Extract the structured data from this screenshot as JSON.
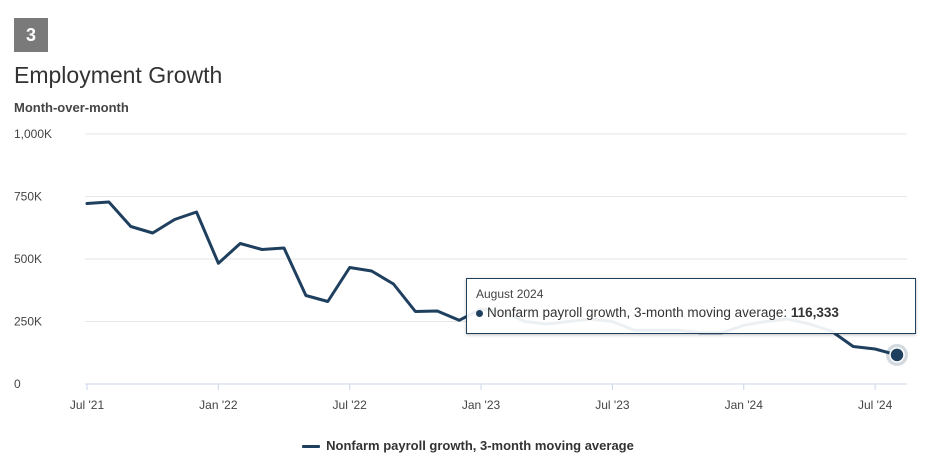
{
  "badge": "3",
  "header": {
    "title": "Employment Growth",
    "subtitle": "Month-over-month"
  },
  "colors": {
    "series": "#1f3f5e",
    "grid": "#e6e6e6",
    "axis": "#ccd6eb"
  },
  "tooltip": {
    "date": "August 2024",
    "label": "Nonfarm payroll growth, 3-month moving average: ",
    "value": "116,333"
  },
  "legend": {
    "label": "Nonfarm payroll growth, 3-month moving average"
  },
  "chart_data": {
    "type": "line",
    "title": "Employment Growth",
    "subtitle": "Month-over-month",
    "ylim": [
      0,
      1000000
    ],
    "y_ticks": [
      {
        "value": 0,
        "label": "0"
      },
      {
        "value": 250000,
        "label": "250K"
      },
      {
        "value": 500000,
        "label": "500K"
      },
      {
        "value": 750000,
        "label": "750K"
      },
      {
        "value": 1000000,
        "label": "1,000K"
      }
    ],
    "x_ticks": [
      {
        "date": "2021-07",
        "label": "Jul '21"
      },
      {
        "date": "2022-01",
        "label": "Jan '22"
      },
      {
        "date": "2022-07",
        "label": "Jul '22"
      },
      {
        "date": "2023-01",
        "label": "Jan '23"
      },
      {
        "date": "2023-07",
        "label": "Jul '23"
      },
      {
        "date": "2024-01",
        "label": "Jan '24"
      },
      {
        "date": "2024-07",
        "label": "Jul '24"
      }
    ],
    "x_range": [
      "2021-07",
      "2024-08"
    ],
    "grid": true,
    "legend_position": "bottom",
    "highlighted_point": {
      "x": "2024-08",
      "y": 116333
    },
    "series": [
      {
        "name": "Nonfarm payroll growth, 3-month moving average",
        "x": [
          "2021-07",
          "2021-08",
          "2021-09",
          "2021-10",
          "2021-11",
          "2021-12",
          "2022-01",
          "2022-02",
          "2022-03",
          "2022-04",
          "2022-05",
          "2022-06",
          "2022-07",
          "2022-08",
          "2022-09",
          "2022-10",
          "2022-11",
          "2022-12",
          "2023-01",
          "2023-02",
          "2023-03",
          "2023-04",
          "2023-05",
          "2023-06",
          "2023-07",
          "2023-08",
          "2023-09",
          "2023-10",
          "2023-11",
          "2023-12",
          "2024-01",
          "2024-02",
          "2024-03",
          "2024-04",
          "2024-05",
          "2024-06",
          "2024-07",
          "2024-08"
        ],
        "values": [
          722000,
          728000,
          630000,
          604000,
          658000,
          688000,
          483000,
          562000,
          538000,
          544000,
          354000,
          330000,
          466000,
          452000,
          400000,
          290000,
          292000,
          255000,
          300000,
          290000,
          250000,
          240000,
          250000,
          260000,
          250000,
          215000,
          215000,
          215000,
          205000,
          205000,
          235000,
          250000,
          260000,
          240000,
          212000,
          150000,
          140000,
          116333
        ]
      }
    ]
  }
}
